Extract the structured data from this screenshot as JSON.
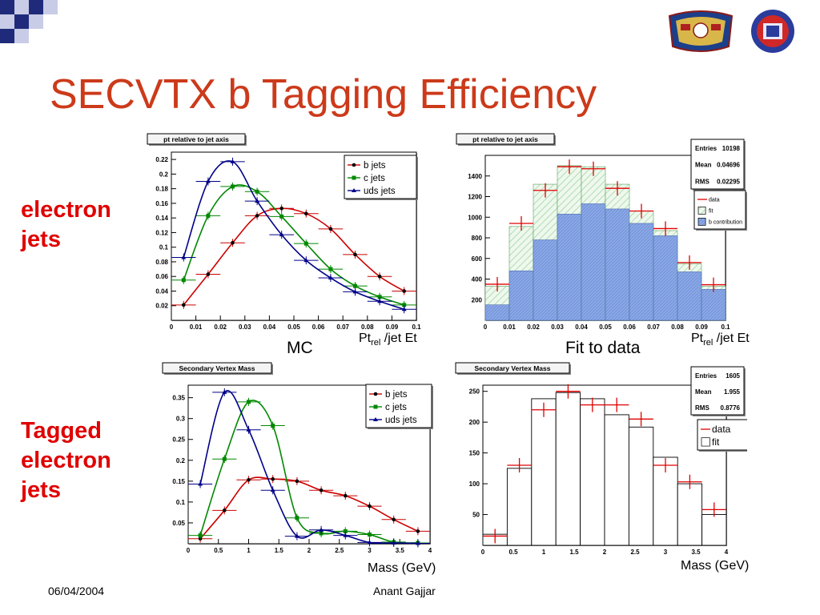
{
  "slide": {
    "title": "SECVTX b Tagging Efficiency",
    "row1_label": [
      "electron",
      "jets"
    ],
    "row2_label": [
      "Tagged",
      "electron",
      "jets"
    ],
    "caption_left": "MC",
    "caption_right": "Fit to data",
    "axis_ptrel_main": "Pt",
    "axis_ptrel_sub": "rel",
    "axis_ptrel_rest": " /jet Et",
    "axis_mass": "Mass (GeV)",
    "footer_date": "06/04/2004",
    "footer_author": "Anant Gajjar"
  },
  "colors": {
    "title": "#cc3a1a",
    "side_label": "#e00000",
    "b": "#cc0000",
    "c": "#008800",
    "uds": "#000088",
    "fit_green": "#9ad29a",
    "b_contrib": "#8aa8e6"
  },
  "chart_data": [
    {
      "type": "line",
      "title": "pt relative to jet axis",
      "xlim": [
        0,
        0.1
      ],
      "ylim": [
        0,
        0.23
      ],
      "xticks": [
        0,
        0.01,
        0.02,
        0.03,
        0.04,
        0.05,
        0.06,
        0.07,
        0.08,
        0.09,
        0.1
      ],
      "xtick_labels": [
        "0",
        "0.01",
        "0.02",
        "0.03",
        "0.04",
        "0.05",
        "0.06",
        "0.07",
        "0.08",
        "0.09",
        "0.1"
      ],
      "yticks": [
        0.02,
        0.04,
        0.06,
        0.08,
        0.1,
        0.12,
        0.14,
        0.16,
        0.18,
        0.2,
        0.22
      ],
      "ytick_labels": [
        "0.02",
        "0.04",
        "0.06",
        "0.08",
        "0.1",
        "0.12",
        "0.14",
        "0.16",
        "0.18",
        "0.2",
        "0.22"
      ],
      "legend": "top-right",
      "series": [
        {
          "name": "b jets",
          "x": [
            0.005,
            0.015,
            0.025,
            0.035,
            0.045,
            0.055,
            0.065,
            0.075,
            0.085,
            0.095
          ],
          "y": [
            0.021,
            0.063,
            0.106,
            0.143,
            0.153,
            0.146,
            0.125,
            0.09,
            0.06,
            0.04
          ]
        },
        {
          "name": "c jets",
          "x": [
            0.005,
            0.015,
            0.025,
            0.035,
            0.045,
            0.055,
            0.065,
            0.075,
            0.085,
            0.095
          ],
          "y": [
            0.055,
            0.143,
            0.183,
            0.176,
            0.142,
            0.105,
            0.07,
            0.047,
            0.032,
            0.021
          ]
        },
        {
          "name": "uds jets",
          "x": [
            0.005,
            0.015,
            0.025,
            0.035,
            0.045,
            0.055,
            0.065,
            0.075,
            0.085,
            0.095
          ],
          "y": [
            0.086,
            0.19,
            0.217,
            0.163,
            0.117,
            0.082,
            0.058,
            0.039,
            0.026,
            0.015
          ]
        }
      ]
    },
    {
      "type": "bar",
      "title": "pt relative to jet axis",
      "xlim": [
        0,
        0.1
      ],
      "ylim": [
        0,
        1600
      ],
      "xticks": [
        0,
        0.01,
        0.02,
        0.03,
        0.04,
        0.05,
        0.06,
        0.07,
        0.08,
        0.09,
        0.1
      ],
      "xtick_labels": [
        "0",
        "0.01",
        "0.02",
        "0.03",
        "0.04",
        "0.05",
        "0.06",
        "0.07",
        "0.08",
        "0.09",
        "0.1"
      ],
      "yticks": [
        200,
        400,
        600,
        800,
        1000,
        1200,
        1400
      ],
      "ytick_labels": [
        "200",
        "400",
        "600",
        "800",
        "1000",
        "1200",
        "1400"
      ],
      "bin_edges": [
        0,
        0.01,
        0.02,
        0.03,
        0.04,
        0.05,
        0.06,
        0.07,
        0.08,
        0.09,
        0.1
      ],
      "stats": [
        {
          "label": "Entries",
          "value": "10198"
        },
        {
          "label": "Mean",
          "value": "0.04696"
        },
        {
          "label": "RMS",
          "value": "0.02295"
        }
      ],
      "legend_entries": [
        "data",
        "fit",
        "b contribution"
      ],
      "series": [
        {
          "name": "data",
          "values": [
            350,
            940,
            1260,
            1490,
            1470,
            1280,
            1060,
            890,
            560,
            345
          ]
        },
        {
          "name": "fit",
          "values": [
            330,
            910,
            1320,
            1500,
            1490,
            1320,
            1060,
            870,
            550,
            330
          ]
        },
        {
          "name": "b contribution",
          "values": [
            150,
            480,
            780,
            1030,
            1130,
            1080,
            940,
            820,
            470,
            300
          ]
        }
      ]
    },
    {
      "type": "line",
      "title": "Secondary Vertex Mass",
      "xlim": [
        0,
        4
      ],
      "ylim": [
        0,
        0.38
      ],
      "xticks": [
        0,
        0.5,
        1,
        1.5,
        2,
        2.5,
        3,
        3.5,
        4
      ],
      "xtick_labels": [
        "0",
        "0.5",
        "1",
        "1.5",
        "2",
        "2.5",
        "3",
        "3.5",
        "4"
      ],
      "yticks": [
        0.05,
        0.1,
        0.15,
        0.2,
        0.25,
        0.3,
        0.35
      ],
      "ytick_labels": [
        "0.05",
        "0.1",
        "0.15",
        "0.2",
        "0.25",
        "0.3",
        "0.35"
      ],
      "legend": "top-right",
      "series": [
        {
          "name": "b jets",
          "x": [
            0.2,
            0.6,
            1.0,
            1.4,
            1.8,
            2.2,
            2.6,
            3.0,
            3.4,
            3.8
          ],
          "y": [
            0.012,
            0.08,
            0.153,
            0.155,
            0.15,
            0.128,
            0.115,
            0.09,
            0.058,
            0.03
          ]
        },
        {
          "name": "c jets",
          "x": [
            0.2,
            0.6,
            1.0,
            1.4,
            1.8,
            2.2,
            2.6,
            3.0,
            3.4,
            3.8
          ],
          "y": [
            0.02,
            0.203,
            0.34,
            0.283,
            0.062,
            0.025,
            0.03,
            0.022,
            0.004,
            0.002
          ]
        },
        {
          "name": "uds jets",
          "x": [
            0.2,
            0.6,
            1.0,
            1.4,
            1.8,
            2.2,
            2.6,
            3.0,
            3.4,
            3.8
          ],
          "y": [
            0.143,
            0.363,
            0.273,
            0.128,
            0.018,
            0.033,
            0.02,
            0.003,
            0.002,
            0.001
          ]
        }
      ]
    },
    {
      "type": "bar",
      "title": "Secondary Vertex Mass",
      "xlim": [
        0,
        4
      ],
      "ylim": [
        0,
        260
      ],
      "xticks": [
        0,
        0.5,
        1,
        1.5,
        2,
        2.5,
        3,
        3.5,
        4
      ],
      "xtick_labels": [
        "0",
        "0.5",
        "1",
        "1.5",
        "2",
        "2.5",
        "3",
        "3.5",
        "4"
      ],
      "yticks": [
        50,
        100,
        150,
        200,
        250
      ],
      "ytick_labels": [
        "50",
        "100",
        "150",
        "200",
        "250"
      ],
      "bin_edges": [
        0,
        0.4,
        0.8,
        1.2,
        1.6,
        2.0,
        2.4,
        2.8,
        3.2,
        3.6,
        4.0
      ],
      "stats": [
        {
          "label": "Entries",
          "value": "1605"
        },
        {
          "label": "Mean",
          "value": "1.955"
        },
        {
          "label": "RMS",
          "value": "0.8776"
        }
      ],
      "legend_entries": [
        "data",
        "fit"
      ],
      "series": [
        {
          "name": "data",
          "values": [
            15,
            130,
            220,
            250,
            228,
            228,
            205,
            130,
            103,
            58
          ]
        },
        {
          "name": "fit",
          "values": [
            18,
            125,
            238,
            248,
            238,
            212,
            192,
            143,
            100,
            50
          ]
        }
      ]
    }
  ]
}
